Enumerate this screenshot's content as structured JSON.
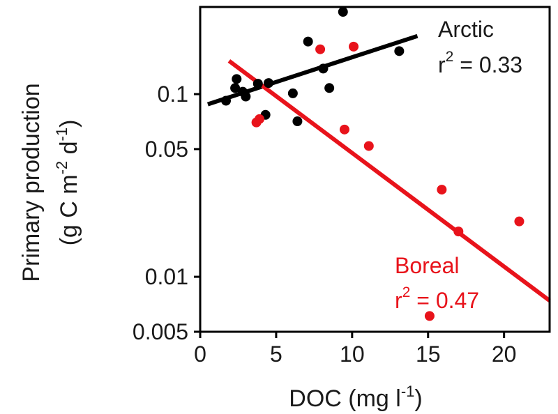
{
  "chart_data": {
    "type": "scatter",
    "xlabel": "DOC (mg l",
    "xlabel_sup": "-1",
    "xlabel_end": ")",
    "ylabel_line1": "Primary production",
    "ylabel_line2": {
      "p1": "(g C m",
      "s1": "-2",
      "p2": " d",
      "s2": "-1",
      "p3": ")"
    },
    "xlim": [
      0,
      23
    ],
    "ylim": [
      0.005,
      0.3
    ],
    "y_scale": "log",
    "x_ticks": [
      0,
      5,
      10,
      15,
      20
    ],
    "x_tick_labels": [
      "0",
      "5",
      "10",
      "15",
      "20"
    ],
    "y_ticks": [
      0.1,
      0.05,
      0.01,
      0.005
    ],
    "y_tick_labels": [
      "0.1",
      "0.05",
      "0.01",
      "0.005"
    ],
    "grid": false,
    "series": [
      {
        "name": "Arctic",
        "color": "#000000",
        "r2_label": "r",
        "r2_sup": "2",
        "r2_value": " = 0.33",
        "points": [
          [
            1.7,
            0.092
          ],
          [
            2.3,
            0.108
          ],
          [
            2.4,
            0.121
          ],
          [
            2.8,
            0.103
          ],
          [
            3.0,
            0.097
          ],
          [
            3.8,
            0.114
          ],
          [
            4.3,
            0.077
          ],
          [
            4.5,
            0.115
          ],
          [
            6.1,
            0.101
          ],
          [
            6.4,
            0.071
          ],
          [
            7.1,
            0.194
          ],
          [
            8.1,
            0.138
          ],
          [
            8.5,
            0.108
          ],
          [
            9.4,
            0.282
          ],
          [
            13.1,
            0.172
          ]
        ],
        "fit": {
          "x": [
            0.5,
            14.3
          ],
          "y": [
            0.088,
            0.208
          ]
        }
      },
      {
        "name": "Boreal",
        "color": "#e8131b",
        "r2_label": "r",
        "r2_sup": "2",
        "r2_value": " = 0.47",
        "points": [
          [
            3.7,
            0.07
          ],
          [
            3.9,
            0.073
          ],
          [
            7.9,
            0.176
          ],
          [
            9.5,
            0.064
          ],
          [
            10.1,
            0.182
          ],
          [
            11.1,
            0.052
          ],
          [
            15.1,
            0.0061
          ],
          [
            15.9,
            0.03
          ],
          [
            17.0,
            0.0177
          ],
          [
            21.0,
            0.0201
          ]
        ],
        "fit": {
          "x": [
            1.9,
            23.0
          ],
          "y": [
            0.152,
            0.0074
          ]
        }
      }
    ]
  }
}
